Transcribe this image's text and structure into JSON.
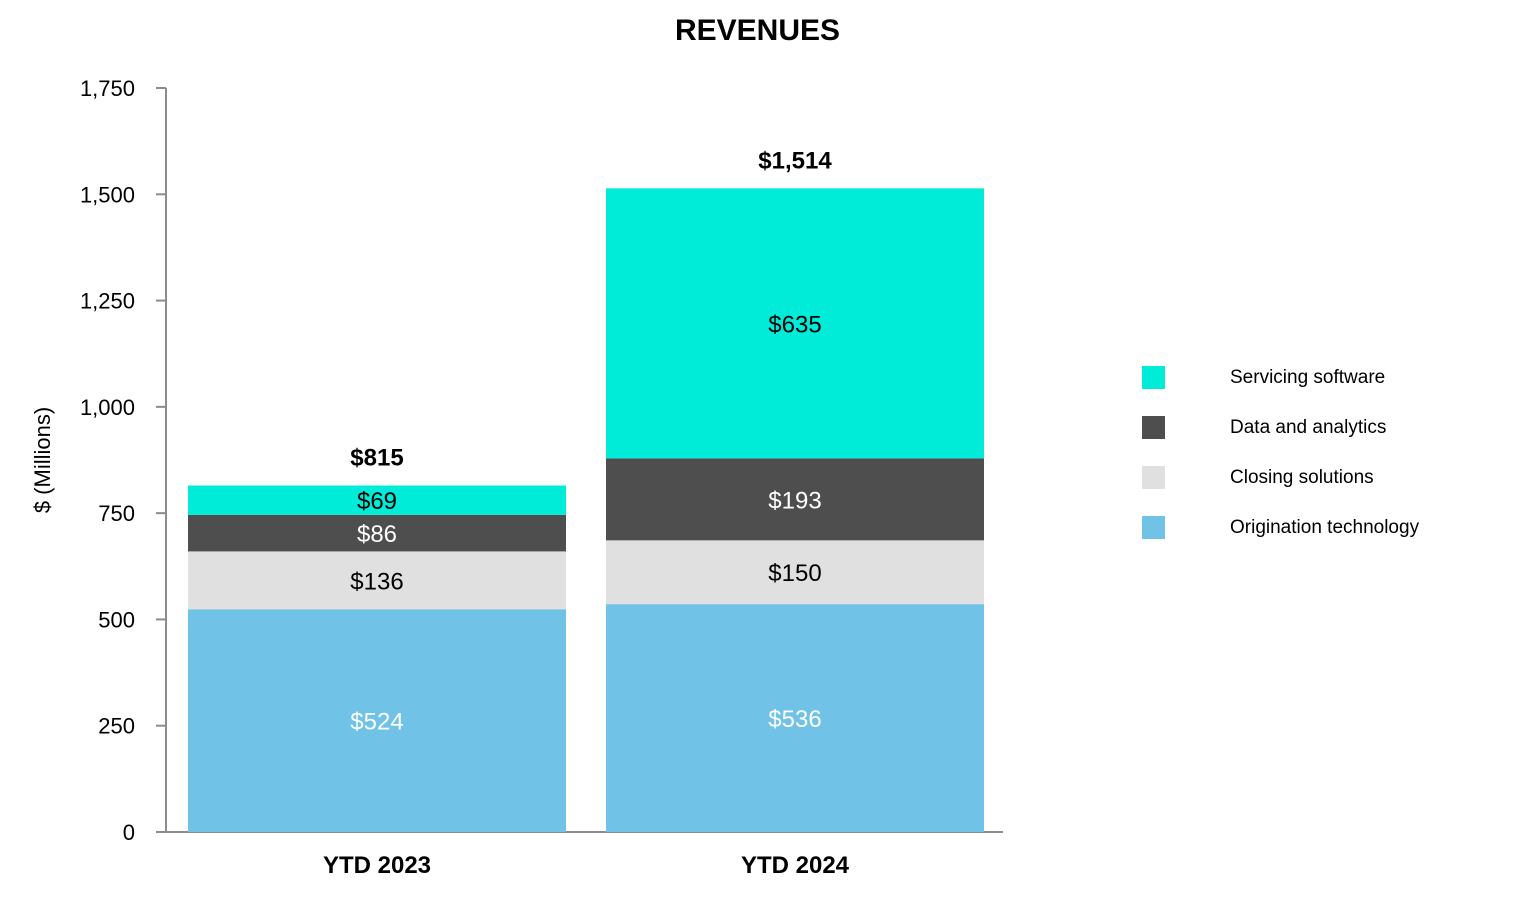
{
  "chart_data": {
    "type": "bar",
    "stacked": true,
    "title": "REVENUES",
    "xlabel": "",
    "ylabel": "$ (Millions)",
    "ylim": [
      0,
      1750
    ],
    "yticks": [
      0,
      250,
      500,
      750,
      1000,
      1250,
      1500,
      1750
    ],
    "ytick_labels": [
      "0",
      "250",
      "500",
      "750",
      "1,000",
      "1,250",
      "1,500",
      "1,750"
    ],
    "grid": false,
    "legend_position": "right",
    "categories": [
      "YTD 2023",
      "YTD 2024"
    ],
    "totals": [
      815,
      1514
    ],
    "total_labels": [
      "$815",
      "$1,514"
    ],
    "series": [
      {
        "name": "Origination technology",
        "color": "#70c3e7",
        "label_color": "#ffffff",
        "values": [
          524,
          536
        ],
        "labels": [
          "$524",
          "$536"
        ]
      },
      {
        "name": "Closing solutions",
        "color": "#e0e0e0",
        "label_color": "#000000",
        "values": [
          136,
          150
        ],
        "labels": [
          "$136",
          "$150"
        ]
      },
      {
        "name": "Data and analytics",
        "color": "#4e4e4e",
        "label_color": "#ffffff",
        "values": [
          86,
          193
        ],
        "labels": [
          "$86",
          "$193"
        ]
      },
      {
        "name": "Servicing software",
        "color": "#00ecd9",
        "label_color": "#000000",
        "values": [
          69,
          635
        ],
        "labels": [
          "$69",
          "$635"
        ]
      }
    ],
    "legend_order": [
      "Servicing software",
      "Data and analytics",
      "Closing solutions",
      "Origination technology"
    ]
  }
}
